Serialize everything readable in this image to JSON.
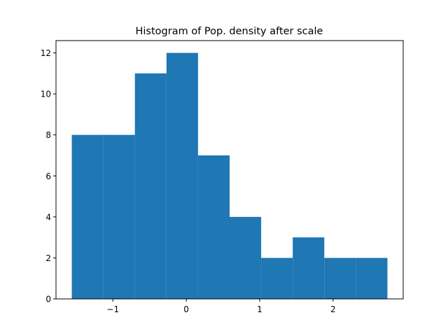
{
  "chart_data": {
    "type": "bar",
    "title": "Histogram of Pop. density after scale",
    "xlabel": "",
    "ylabel": "",
    "bin_edges": [
      -1.56,
      -1.13,
      -0.7,
      -0.27,
      0.16,
      0.59,
      1.02,
      1.45,
      1.88,
      2.31,
      2.74
    ],
    "values": [
      8,
      8,
      11,
      12,
      7,
      4,
      2,
      3,
      2,
      2
    ],
    "xlim": [
      -1.775,
      2.955
    ],
    "ylim": [
      0,
      12.6
    ],
    "x_ticks": [
      -1,
      0,
      1,
      2
    ],
    "x_tick_labels": [
      "−1",
      "0",
      "1",
      "2"
    ],
    "y_ticks": [
      0,
      2,
      4,
      6,
      8,
      10,
      12
    ],
    "y_tick_labels": [
      "0",
      "2",
      "4",
      "6",
      "8",
      "10",
      "12"
    ],
    "grid": false,
    "legend": "none",
    "bar_color": "#1f77b4"
  }
}
